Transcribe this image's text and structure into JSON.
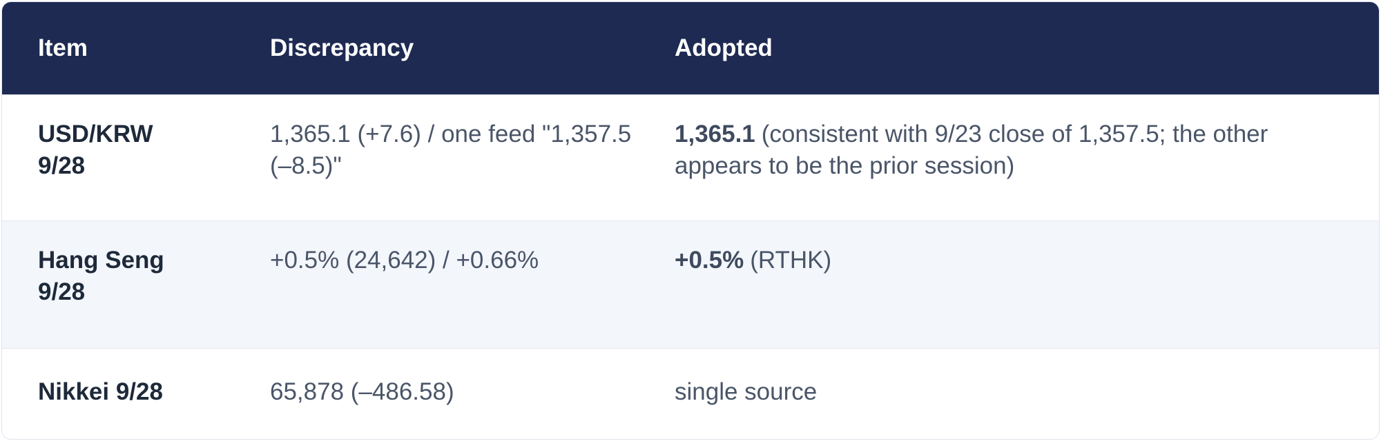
{
  "table": {
    "header": [
      "Item",
      "Discrepancy",
      "Adopted"
    ],
    "rows": [
      {
        "item": "USD/KRW 9/28",
        "discrepancy": "1,365.1 (+7.6) / one feed \"1,357.5 (–8.5)\"",
        "adopted": {
          "bold": "1,365.1",
          "text": "(consistent with 9/23 close of 1,357.5; the other appears to be the prior session)"
        }
      },
      {
        "item": "Hang Seng 9/28",
        "discrepancy": "+0.5% (24,642) / +0.66%",
        "adopted": {
          "bold": "+0.5%",
          "text": "(RTHK)"
        }
      },
      {
        "item": "Nikkei 9/28",
        "discrepancy": "65,878 (–486.58)",
        "adopted": {
          "text": "single source"
        }
      }
    ]
  }
}
